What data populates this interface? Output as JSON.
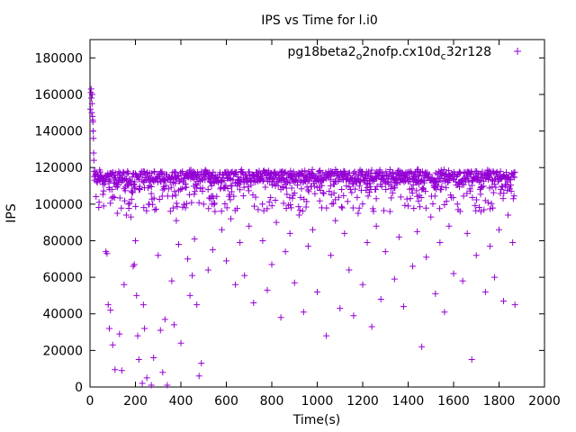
{
  "chart_data": {
    "type": "scatter",
    "title": "IPS vs Time for l.i0",
    "xlabel": "Time(s)",
    "ylabel": "IPS",
    "xlim": [
      0,
      2000
    ],
    "ylim": [
      0,
      190000
    ],
    "xticks": [
      0,
      200,
      400,
      600,
      800,
      1000,
      1200,
      1400,
      1600,
      1800,
      2000
    ],
    "yticks": [
      0,
      20000,
      40000,
      60000,
      80000,
      100000,
      120000,
      140000,
      160000,
      180000
    ],
    "grid": false,
    "legend_position": "top-right",
    "marker": "plus",
    "series": [
      {
        "name": "pg18beta2_o2nofp.cx10d_c32r128",
        "color": "#9400d3",
        "duration": [
          0,
          1870
        ],
        "startup_peak": 162000,
        "steady_band": [
          108000,
          119000
        ],
        "outlier_range": [
          0,
          105000
        ],
        "points": [
          [
            2,
            152000
          ],
          [
            4,
            161000
          ],
          [
            5,
            163000
          ],
          [
            6,
            158000
          ],
          [
            8,
            150000
          ],
          [
            9,
            155000
          ],
          [
            10,
            160000
          ],
          [
            11,
            148000
          ],
          [
            12,
            146000
          ],
          [
            13,
            145000
          ],
          [
            14,
            140000
          ],
          [
            15,
            136000
          ],
          [
            16,
            128000
          ],
          [
            17,
            124000
          ],
          [
            18,
            118000
          ],
          [
            19,
            115000
          ],
          [
            40,
            101000
          ],
          [
            60,
            99000
          ],
          [
            70,
            74000
          ],
          [
            75,
            73000
          ],
          [
            80,
            45000
          ],
          [
            85,
            32000
          ],
          [
            90,
            42000
          ],
          [
            100,
            23000
          ],
          [
            110,
            9500
          ],
          [
            120,
            95000
          ],
          [
            130,
            29000
          ],
          [
            140,
            9000
          ],
          [
            150,
            56000
          ],
          [
            160,
            94000
          ],
          [
            170,
            100000
          ],
          [
            180,
            93000
          ],
          [
            190,
            66000
          ],
          [
            195,
            67000
          ],
          [
            200,
            80000
          ],
          [
            205,
            50000
          ],
          [
            210,
            28000
          ],
          [
            215,
            15000
          ],
          [
            230,
            2000
          ],
          [
            235,
            45000
          ],
          [
            240,
            32000
          ],
          [
            250,
            5000
          ],
          [
            270,
            1000
          ],
          [
            280,
            16000
          ],
          [
            300,
            72000
          ],
          [
            310,
            31000
          ],
          [
            320,
            8000
          ],
          [
            330,
            37000
          ],
          [
            340,
            1000
          ],
          [
            360,
            58000
          ],
          [
            370,
            34000
          ],
          [
            380,
            91000
          ],
          [
            390,
            78000
          ],
          [
            400,
            24000
          ],
          [
            420,
            98000
          ],
          [
            430,
            70000
          ],
          [
            440,
            50000
          ],
          [
            450,
            61000
          ],
          [
            460,
            81000
          ],
          [
            470,
            45000
          ],
          [
            480,
            6000
          ],
          [
            490,
            13000
          ],
          [
            500,
            100000
          ],
          [
            520,
            64000
          ],
          [
            540,
            75000
          ],
          [
            550,
            96000
          ],
          [
            580,
            86000
          ],
          [
            600,
            69000
          ],
          [
            620,
            92000
          ],
          [
            640,
            56000
          ],
          [
            660,
            79000
          ],
          [
            680,
            61000
          ],
          [
            700,
            88000
          ],
          [
            720,
            46000
          ],
          [
            740,
            97000
          ],
          [
            760,
            80000
          ],
          [
            780,
            53000
          ],
          [
            800,
            67000
          ],
          [
            820,
            90000
          ],
          [
            840,
            38000
          ],
          [
            860,
            74000
          ],
          [
            880,
            84000
          ],
          [
            900,
            57000
          ],
          [
            920,
            94000
          ],
          [
            940,
            41000
          ],
          [
            960,
            77000
          ],
          [
            980,
            86000
          ],
          [
            1000,
            52000
          ],
          [
            1020,
            98000
          ],
          [
            1040,
            28000
          ],
          [
            1060,
            72000
          ],
          [
            1080,
            91000
          ],
          [
            1100,
            43000
          ],
          [
            1120,
            84000
          ],
          [
            1140,
            64000
          ],
          [
            1160,
            39000
          ],
          [
            1180,
            95000
          ],
          [
            1200,
            56000
          ],
          [
            1220,
            79000
          ],
          [
            1240,
            33000
          ],
          [
            1260,
            88000
          ],
          [
            1280,
            48000
          ],
          [
            1300,
            74000
          ],
          [
            1320,
            96000
          ],
          [
            1340,
            59000
          ],
          [
            1360,
            82000
          ],
          [
            1380,
            44000
          ],
          [
            1400,
            99000
          ],
          [
            1420,
            66000
          ],
          [
            1440,
            85000
          ],
          [
            1460,
            22000
          ],
          [
            1480,
            71000
          ],
          [
            1500,
            93000
          ],
          [
            1520,
            51000
          ],
          [
            1540,
            79000
          ],
          [
            1560,
            41000
          ],
          [
            1580,
            88000
          ],
          [
            1600,
            62000
          ],
          [
            1620,
            97000
          ],
          [
            1640,
            58000
          ],
          [
            1660,
            84000
          ],
          [
            1680,
            15000
          ],
          [
            1700,
            72000
          ],
          [
            1720,
            96000
          ],
          [
            1740,
            52000
          ],
          [
            1760,
            77000
          ],
          [
            1780,
            60000
          ],
          [
            1800,
            86000
          ],
          [
            1820,
            47000
          ],
          [
            1840,
            94000
          ],
          [
            1860,
            79000
          ],
          [
            1870,
            45000
          ]
        ]
      }
    ]
  }
}
